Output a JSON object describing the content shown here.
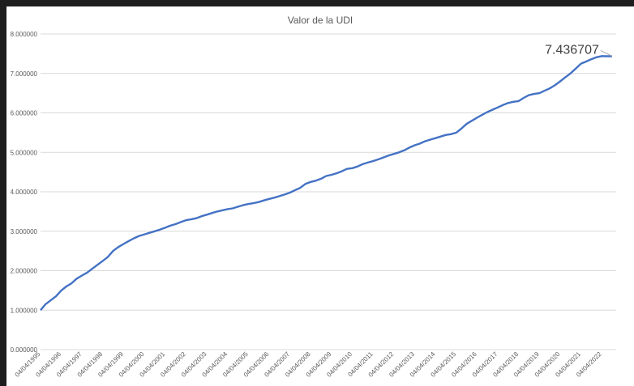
{
  "chart_data": {
    "type": "line",
    "title": "Valor de la UDI",
    "xlabel": "",
    "ylabel": "",
    "ylim": [
      0,
      8
    ],
    "grid": true,
    "legend": "none",
    "y_ticks": [
      "0.000000",
      "1.000000",
      "2.000000",
      "3.000000",
      "4.000000",
      "5.000000",
      "6.000000",
      "7.000000",
      "8.000000"
    ],
    "x_ticks": [
      "04/04/1995",
      "04/04/1996",
      "04/04/1997",
      "04/04/1998",
      "04/04/1999",
      "04/04/2000",
      "04/04/2001",
      "04/04/2002",
      "04/04/2003",
      "04/04/2004",
      "04/04/2005",
      "04/04/2006",
      "04/04/2007",
      "04/04/2008",
      "04/04/2009",
      "04/04/2010",
      "04/04/2011",
      "04/04/2012",
      "04/04/2013",
      "04/04/2014",
      "04/04/2015",
      "04/04/2016",
      "04/04/2017",
      "04/04/2018",
      "04/04/2019",
      "04/04/2020",
      "04/04/2021",
      "04/04/2022"
    ],
    "annotation": "7.436707",
    "series_color": "#4472c4",
    "x": [
      1995.26,
      1995.5,
      1995.75,
      1996.0,
      1996.26,
      1996.5,
      1996.75,
      1997.0,
      1997.26,
      1997.5,
      1997.75,
      1998.0,
      1998.26,
      1998.5,
      1998.75,
      1999.0,
      1999.26,
      1999.5,
      1999.75,
      2000.0,
      2000.26,
      2000.5,
      2000.75,
      2001.0,
      2001.26,
      2001.5,
      2001.75,
      2002.0,
      2002.26,
      2002.5,
      2002.75,
      2003.0,
      2003.26,
      2003.5,
      2003.75,
      2004.0,
      2004.26,
      2004.5,
      2004.75,
      2005.0,
      2005.26,
      2005.5,
      2005.75,
      2006.0,
      2006.26,
      2006.5,
      2006.75,
      2007.0,
      2007.26,
      2007.5,
      2007.75,
      2008.0,
      2008.26,
      2008.5,
      2008.75,
      2009.0,
      2009.26,
      2009.5,
      2009.75,
      2010.0,
      2010.26,
      2010.5,
      2010.75,
      2011.0,
      2011.26,
      2011.5,
      2011.75,
      2012.0,
      2012.26,
      2012.5,
      2012.75,
      2013.0,
      2013.26,
      2013.5,
      2013.75,
      2014.0,
      2014.26,
      2014.5,
      2014.75,
      2015.0,
      2015.26,
      2015.5,
      2015.75,
      2016.0,
      2016.26,
      2016.5,
      2016.75,
      2017.0,
      2017.26,
      2017.5,
      2017.75,
      2018.0,
      2018.26,
      2018.5,
      2018.75,
      2019.0,
      2019.26,
      2019.5,
      2019.75,
      2020.0,
      2020.26,
      2020.5,
      2020.75,
      2021.0,
      2021.26,
      2021.5,
      2021.75,
      2022.0,
      2022.26,
      2022.5,
      2022.75
    ],
    "values": [
      1.0,
      1.15,
      1.25,
      1.35,
      1.5,
      1.6,
      1.68,
      1.8,
      1.88,
      1.95,
      2.05,
      2.15,
      2.25,
      2.35,
      2.5,
      2.6,
      2.68,
      2.75,
      2.82,
      2.88,
      2.92,
      2.96,
      3.0,
      3.04,
      3.09,
      3.14,
      3.18,
      3.23,
      3.28,
      3.3,
      3.33,
      3.38,
      3.42,
      3.46,
      3.5,
      3.53,
      3.56,
      3.58,
      3.62,
      3.66,
      3.69,
      3.71,
      3.74,
      3.78,
      3.82,
      3.85,
      3.89,
      3.93,
      3.98,
      4.04,
      4.1,
      4.2,
      4.25,
      4.28,
      4.33,
      4.4,
      4.43,
      4.47,
      4.52,
      4.58,
      4.6,
      4.64,
      4.7,
      4.74,
      4.78,
      4.82,
      4.87,
      4.92,
      4.96,
      5.0,
      5.05,
      5.12,
      5.18,
      5.22,
      5.28,
      5.32,
      5.36,
      5.4,
      5.44,
      5.46,
      5.5,
      5.6,
      5.72,
      5.8,
      5.88,
      5.95,
      6.02,
      6.08,
      6.14,
      6.2,
      6.25,
      6.28,
      6.3,
      6.38,
      6.45,
      6.48,
      6.5,
      6.56,
      6.62,
      6.7,
      6.8,
      6.9,
      7.0,
      7.12,
      7.25,
      7.3,
      7.36,
      7.41,
      7.44,
      7.436707,
      7.436707
    ]
  }
}
